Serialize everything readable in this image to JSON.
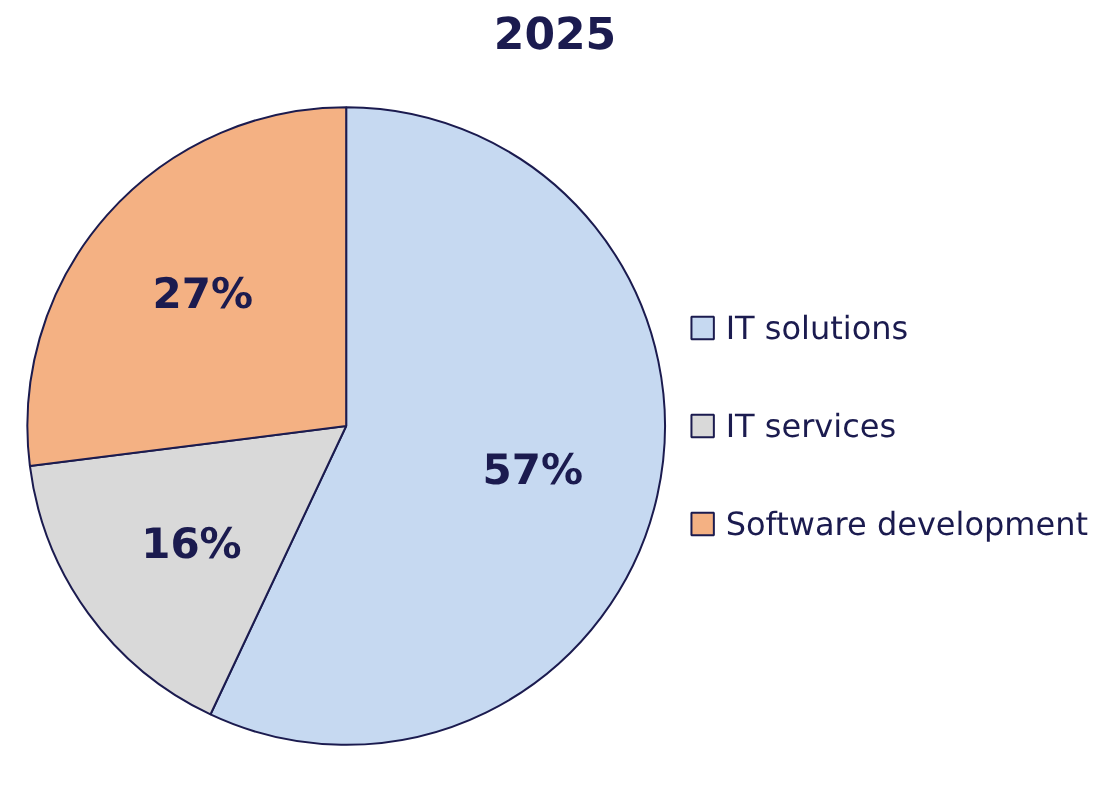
{
  "chart_data": {
    "type": "pie",
    "title": "2025",
    "categories": [
      "IT solutions",
      "IT services",
      "Software development"
    ],
    "values": [
      57,
      16,
      27
    ],
    "colors": [
      "#c6d9f1",
      "#d9d9d9",
      "#f4b183"
    ],
    "value_labels": [
      "57%",
      "16%",
      "27%"
    ],
    "legend": "right"
  }
}
